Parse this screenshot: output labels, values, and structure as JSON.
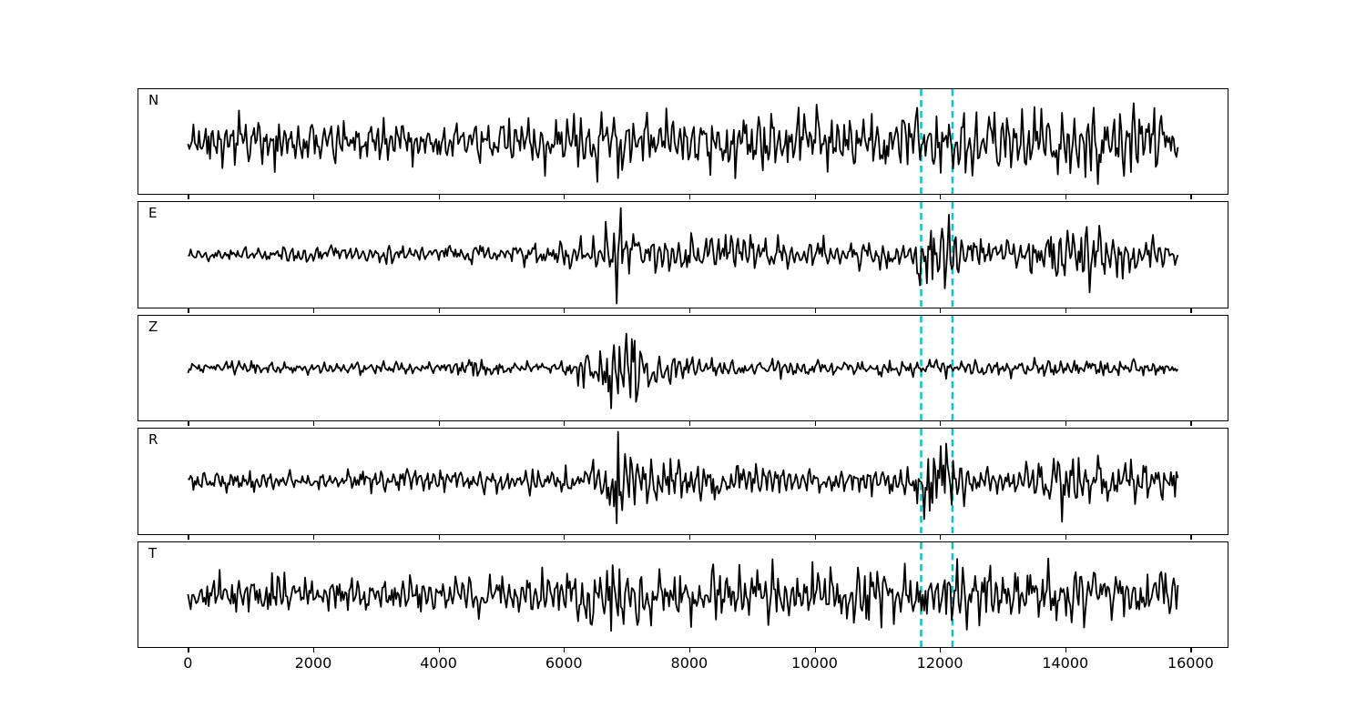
{
  "figure": {
    "background": "#ffffff",
    "trace_color": "#000000",
    "axis_color": "#000000"
  },
  "chart_data": {
    "type": "line",
    "title": "",
    "xlabel": "",
    "ylabel": "",
    "grid": false,
    "legend": null,
    "x_ticks": [
      "0",
      "2000",
      "4000",
      "6000",
      "8000",
      "10000",
      "12000",
      "14000",
      "16000"
    ],
    "x_tick_values": [
      0,
      2000,
      4000,
      6000,
      8000,
      10000,
      12000,
      14000,
      16000
    ],
    "xlim": [
      -790,
      16590
    ],
    "x_data_range": [
      0,
      15800
    ],
    "trace_color": "#000000",
    "marker_window": {
      "style": "dashed",
      "color": "#14c0c4",
      "x_start": 11700,
      "x_end": 12200
    },
    "panels": [
      {
        "label": "N",
        "seed": 11,
        "description": "high-amplitude noisy trace throughout, spike near 6800",
        "envelope": [
          [
            0,
            0.38
          ],
          [
            1000,
            0.45
          ],
          [
            2000,
            0.4
          ],
          [
            3000,
            0.36
          ],
          [
            4000,
            0.4
          ],
          [
            5000,
            0.44
          ],
          [
            6000,
            0.52
          ],
          [
            6700,
            0.7
          ],
          [
            6850,
            0.98
          ],
          [
            7100,
            0.6
          ],
          [
            8000,
            0.52
          ],
          [
            9000,
            0.52
          ],
          [
            10000,
            0.52
          ],
          [
            11000,
            0.52
          ],
          [
            12000,
            0.52
          ],
          [
            13000,
            0.58
          ],
          [
            14000,
            0.62
          ],
          [
            15000,
            0.58
          ],
          [
            15800,
            0.46
          ]
        ]
      },
      {
        "label": "E",
        "seed": 22,
        "description": "quiet start, burst at 6800, strong burst inside marker window, burst near 14000",
        "envelope": [
          [
            0,
            0.12
          ],
          [
            1000,
            0.15
          ],
          [
            2000,
            0.18
          ],
          [
            3000,
            0.15
          ],
          [
            4000,
            0.17
          ],
          [
            5000,
            0.18
          ],
          [
            6000,
            0.22
          ],
          [
            6600,
            0.35
          ],
          [
            6850,
            0.88
          ],
          [
            7200,
            0.5
          ],
          [
            7600,
            0.36
          ],
          [
            8000,
            0.38
          ],
          [
            9000,
            0.3
          ],
          [
            10000,
            0.27
          ],
          [
            11000,
            0.24
          ],
          [
            11600,
            0.32
          ],
          [
            11900,
            0.98
          ],
          [
            12200,
            0.55
          ],
          [
            12600,
            0.3
          ],
          [
            13000,
            0.28
          ],
          [
            13800,
            0.52
          ],
          [
            14200,
            0.62
          ],
          [
            14800,
            0.36
          ],
          [
            15500,
            0.26
          ],
          [
            15800,
            0.2
          ]
        ]
      },
      {
        "label": "Z",
        "seed": 33,
        "description": "low-amplitude trace, dominant P burst at 6800, small blip near 4600",
        "envelope": [
          [
            0,
            0.1
          ],
          [
            2000,
            0.1
          ],
          [
            4000,
            0.1
          ],
          [
            4600,
            0.2
          ],
          [
            5000,
            0.1
          ],
          [
            6000,
            0.12
          ],
          [
            6600,
            0.55
          ],
          [
            6850,
            0.98
          ],
          [
            7200,
            0.52
          ],
          [
            7600,
            0.32
          ],
          [
            8000,
            0.2
          ],
          [
            9000,
            0.16
          ],
          [
            10000,
            0.15
          ],
          [
            11000,
            0.13
          ],
          [
            12000,
            0.15
          ],
          [
            13000,
            0.15
          ],
          [
            14000,
            0.18
          ],
          [
            15000,
            0.16
          ],
          [
            15800,
            0.12
          ]
        ]
      },
      {
        "label": "R",
        "seed": 44,
        "description": "moderate trace, burst at 6800, strong burst inside marker window, burst near 14000",
        "envelope": [
          [
            0,
            0.15
          ],
          [
            1000,
            0.18
          ],
          [
            2000,
            0.15
          ],
          [
            3000,
            0.18
          ],
          [
            4000,
            0.2
          ],
          [
            5000,
            0.2
          ],
          [
            6000,
            0.22
          ],
          [
            6600,
            0.34
          ],
          [
            6850,
            0.82
          ],
          [
            7200,
            0.46
          ],
          [
            8000,
            0.4
          ],
          [
            9000,
            0.3
          ],
          [
            10000,
            0.26
          ],
          [
            11000,
            0.23
          ],
          [
            11650,
            0.32
          ],
          [
            11950,
            0.98
          ],
          [
            12300,
            0.52
          ],
          [
            12800,
            0.3
          ],
          [
            13500,
            0.36
          ],
          [
            14000,
            0.6
          ],
          [
            14500,
            0.42
          ],
          [
            15000,
            0.32
          ],
          [
            15800,
            0.36
          ]
        ]
      },
      {
        "label": "T",
        "seed": 55,
        "description": "high-amplitude trace throughout, large spike at 6800",
        "envelope": [
          [
            0,
            0.3
          ],
          [
            1000,
            0.4
          ],
          [
            2000,
            0.32
          ],
          [
            3000,
            0.33
          ],
          [
            4000,
            0.31
          ],
          [
            5000,
            0.36
          ],
          [
            6000,
            0.42
          ],
          [
            6700,
            0.6
          ],
          [
            6850,
            0.98
          ],
          [
            7200,
            0.52
          ],
          [
            8000,
            0.52
          ],
          [
            9000,
            0.52
          ],
          [
            10000,
            0.46
          ],
          [
            11000,
            0.46
          ],
          [
            12000,
            0.52
          ],
          [
            13000,
            0.46
          ],
          [
            14000,
            0.56
          ],
          [
            15000,
            0.52
          ],
          [
            15800,
            0.42
          ]
        ]
      }
    ]
  }
}
